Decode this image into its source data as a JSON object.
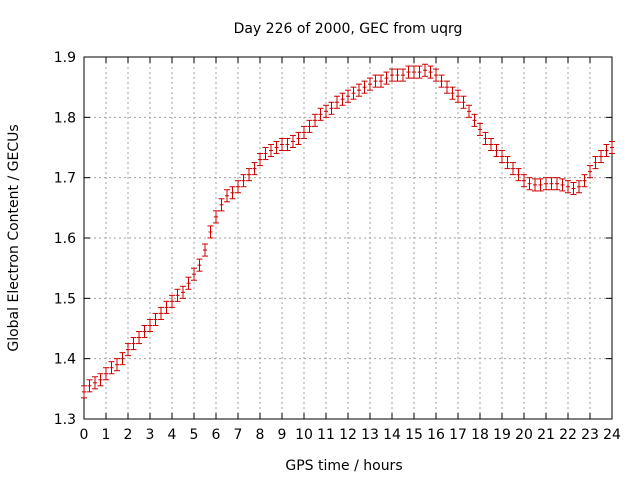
{
  "chart_data": {
    "type": "line",
    "title": "Day 226 of 2000, GEC from uqrg",
    "xlabel": "GPS time / hours",
    "ylabel": "Global Electron Content / GECUs",
    "xlim": [
      0,
      24
    ],
    "ylim": [
      1.3,
      1.9
    ],
    "xticks": [
      0,
      1,
      2,
      3,
      4,
      5,
      6,
      7,
      8,
      9,
      10,
      11,
      12,
      13,
      14,
      15,
      16,
      17,
      18,
      19,
      20,
      21,
      22,
      23,
      24
    ],
    "yticks": [
      1.3,
      1.4,
      1.5,
      1.6,
      1.7,
      1.8,
      1.9
    ],
    "ytick_labels": [
      "1.3",
      "1.4",
      "1.5",
      "1.6",
      "1.7",
      "1.8",
      "1.9"
    ],
    "grid": true,
    "error_bar": 0.01,
    "series": [
      {
        "name": "GEC",
        "color": "#cc0000",
        "x": [
          0.0,
          0.25,
          0.5,
          0.75,
          1.0,
          1.25,
          1.5,
          1.75,
          2.0,
          2.25,
          2.5,
          2.75,
          3.0,
          3.25,
          3.5,
          3.75,
          4.0,
          4.25,
          4.5,
          4.75,
          5.0,
          5.25,
          5.5,
          5.75,
          6.0,
          6.25,
          6.5,
          6.75,
          7.0,
          7.25,
          7.5,
          7.75,
          8.0,
          8.25,
          8.5,
          8.75,
          9.0,
          9.25,
          9.5,
          9.75,
          10.0,
          10.25,
          10.5,
          10.75,
          11.0,
          11.25,
          11.5,
          11.75,
          12.0,
          12.25,
          12.5,
          12.75,
          13.0,
          13.25,
          13.5,
          13.75,
          14.0,
          14.25,
          14.5,
          14.75,
          15.0,
          15.25,
          15.5,
          15.75,
          16.0,
          16.25,
          16.5,
          16.75,
          17.0,
          17.25,
          17.5,
          17.75,
          18.0,
          18.25,
          18.5,
          18.75,
          19.0,
          19.25,
          19.5,
          19.75,
          20.0,
          20.25,
          20.5,
          20.75,
          21.0,
          21.25,
          21.5,
          21.75,
          22.0,
          22.25,
          22.5,
          22.75,
          23.0,
          23.25,
          23.5,
          23.75,
          24.0
        ],
        "values": [
          1.345,
          1.355,
          1.36,
          1.365,
          1.375,
          1.385,
          1.39,
          1.4,
          1.415,
          1.425,
          1.435,
          1.445,
          1.455,
          1.465,
          1.475,
          1.485,
          1.495,
          1.505,
          1.51,
          1.525,
          1.54,
          1.555,
          1.58,
          1.61,
          1.635,
          1.655,
          1.67,
          1.675,
          1.685,
          1.695,
          1.705,
          1.715,
          1.73,
          1.74,
          1.745,
          1.75,
          1.755,
          1.755,
          1.76,
          1.765,
          1.775,
          1.785,
          1.795,
          1.805,
          1.81,
          1.815,
          1.825,
          1.83,
          1.835,
          1.84,
          1.845,
          1.85,
          1.855,
          1.86,
          1.86,
          1.865,
          1.87,
          1.87,
          1.87,
          1.875,
          1.875,
          1.875,
          1.878,
          1.875,
          1.87,
          1.86,
          1.85,
          1.84,
          1.835,
          1.825,
          1.81,
          1.795,
          1.78,
          1.765,
          1.755,
          1.745,
          1.735,
          1.725,
          1.715,
          1.705,
          1.695,
          1.69,
          1.688,
          1.688,
          1.69,
          1.69,
          1.69,
          1.688,
          1.685,
          1.682,
          1.685,
          1.695,
          1.71,
          1.725,
          1.735,
          1.745,
          1.75
        ]
      }
    ]
  }
}
